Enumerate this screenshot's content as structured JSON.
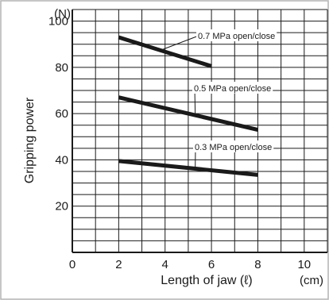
{
  "chart_data": {
    "type": "line",
    "title": "",
    "xlabel": "Length of jaw (ℓ)",
    "ylabel": "Gripping power",
    "x_unit": "(cm)",
    "y_unit": "(N)",
    "xlim": [
      0,
      11
    ],
    "ylim": [
      0,
      105
    ],
    "x_ticks": [
      0,
      2,
      4,
      6,
      8,
      10
    ],
    "y_ticks": [
      20,
      40,
      60,
      80,
      100
    ],
    "x_minor_step": 1,
    "y_minor_step": 5,
    "grid": true,
    "legend": "none",
    "series": [
      {
        "name": "0.7 MPa open/close",
        "x": [
          2,
          6
        ],
        "y": [
          93,
          80.5
        ]
      },
      {
        "name": "0.5 MPa open/close",
        "x": [
          2,
          8
        ],
        "y": [
          67,
          53
        ]
      },
      {
        "name": "0.3 MPa open/close",
        "x": [
          2,
          8
        ],
        "y": [
          39.5,
          33.5
        ]
      }
    ],
    "colors": {
      "line": "#1a1a1a",
      "grid": "#1a1a1a",
      "frame": "#b3b3b3"
    }
  }
}
